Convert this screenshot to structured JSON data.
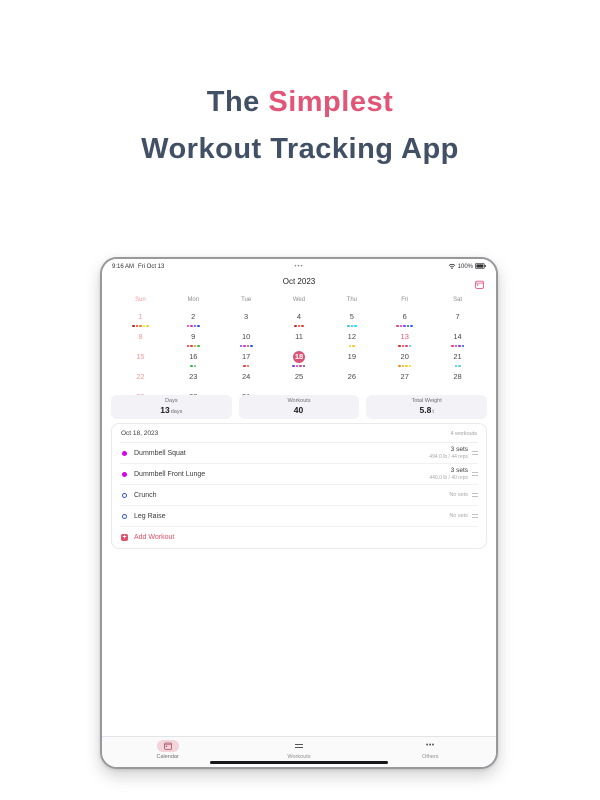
{
  "hero": {
    "the": "The ",
    "simplest": "Simplest",
    "line2": "Workout Tracking App"
  },
  "status": {
    "time": "9:16 AM",
    "date": "Fri Oct 13",
    "ellipsis": "•••",
    "battery_pct": "100%"
  },
  "nav": {
    "title": "Oct 2023"
  },
  "calendar": {
    "weekdays": [
      "Sun",
      "Mon",
      "Tue",
      "Wed",
      "Thu",
      "Fri",
      "Sat"
    ],
    "num_days": 31,
    "start_col": 0,
    "today": 13,
    "selected": 18,
    "dot_colors": {
      "1": [
        "#b3261e",
        "#e53935",
        "#f57c00",
        "#fdd835",
        "#e8d51e"
      ],
      "2": [
        "#ea3b6e",
        "#cf2fd6",
        "#7d3bec",
        "#2f55e2"
      ],
      "4": [
        "#c62828",
        "#e53935",
        "#e53935"
      ],
      "5": [
        "#2bd0d8",
        "#26c6da",
        "#00e5ff"
      ],
      "6": [
        "#ea3b6e",
        "#cf2fd6",
        "#7d3bec",
        "#2f55e2",
        "#2962ff"
      ],
      "9": [
        "#d32f2f",
        "#e53935",
        "#ef8b1d",
        "#35b54a"
      ],
      "10": [
        "#7d3bec",
        "#cf2fd6",
        "#ea3b6e",
        "#2f55e2"
      ],
      "12": [
        "#ecd024",
        "#fbc02d"
      ],
      "13": [
        "#d32f2f",
        "#e53935",
        "#ea3b6e",
        "#2bd0d8"
      ],
      "14": [
        "#ea3b6e",
        "#cf2fd6",
        "#7d3bec",
        "#2f55e2"
      ],
      "16": [
        "#35b54a",
        "#66bb6a"
      ],
      "17": [
        "#e53935",
        "#ef5350"
      ],
      "18": [
        "#7d3bec",
        "#cf2fd6",
        "#ea3b6e",
        "#2f55e2"
      ],
      "20": [
        "#ef8b1d",
        "#f9a825",
        "#ecd024",
        "#fdd835"
      ],
      "21": [
        "#2bd0d8",
        "#4dd0e1"
      ]
    }
  },
  "stats": {
    "cards": [
      {
        "label": "Days",
        "value": "13",
        "unit": "days"
      },
      {
        "label": "Workouts",
        "value": "40",
        "unit": ""
      },
      {
        "label": "Total Weight",
        "value": "5.8",
        "unit": "t"
      }
    ]
  },
  "workouts": {
    "date": "Oct 18, 2023",
    "count_label": "4 workouts",
    "items": [
      {
        "name": "Dummbell Squat",
        "status": "done",
        "sets": "3 sets",
        "detail": "494.0 lb / 44 reps"
      },
      {
        "name": "Dummbell Front Lunge",
        "status": "done",
        "sets": "3 sets",
        "detail": "440.0 lb / 40 reps"
      },
      {
        "name": "Crunch",
        "status": "todo",
        "sets": "No sets",
        "detail": ""
      },
      {
        "name": "Leg Raise",
        "status": "todo",
        "sets": "No sets",
        "detail": ""
      }
    ],
    "add_label": "Add Workout",
    "plus_glyph": "+"
  },
  "tabbar": {
    "tabs": [
      {
        "label": "Calendar"
      },
      {
        "label": "Workouts"
      },
      {
        "label": "Others"
      }
    ],
    "others_glyph": "•••"
  },
  "colors": {
    "accent": "#e25576",
    "title_dark": "#415064",
    "selected_day": "#d95577",
    "today_day": "#e8566e",
    "sunday": "#f09a9a",
    "done_marker": "#d602ee",
    "todo_marker": "#2f55e2",
    "add_button": "#e0506a"
  }
}
